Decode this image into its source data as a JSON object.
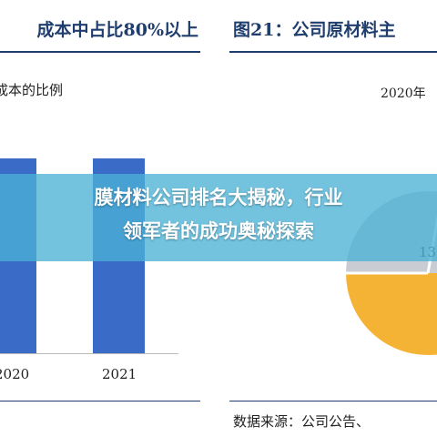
{
  "overlay": {
    "headline_line1": "膜材料公司排名大揭秘，行业",
    "headline_line2": "领军者的成功奥秘探索"
  },
  "left_figure": {
    "title": "成本中占比80%以上",
    "subtitle": "成本的比例"
  },
  "right_figure": {
    "title": "图21：公司原材料主",
    "pie_label": "13",
    "source_text": "数据来源：公司公告、"
  },
  "colors": {
    "title_color": "#1f3e6e",
    "bar_color": "#3a6bc6",
    "overlay_color": "#4cb2d6",
    "pie_gold": "#f5b335",
    "pie_gray": "#c9ccd3"
  },
  "chart_data": [
    {
      "type": "bar",
      "categories": [
        "2020",
        "2021"
      ],
      "values": [
        null,
        null
      ],
      "title": "成本的比例",
      "xlabel": "",
      "ylabel": ""
    },
    {
      "type": "pie",
      "title": "2020年",
      "slices": [
        {
          "label": "13",
          "color": "#c9ccd3"
        },
        {
          "label": "",
          "color": "#f5b335"
        }
      ]
    }
  ]
}
